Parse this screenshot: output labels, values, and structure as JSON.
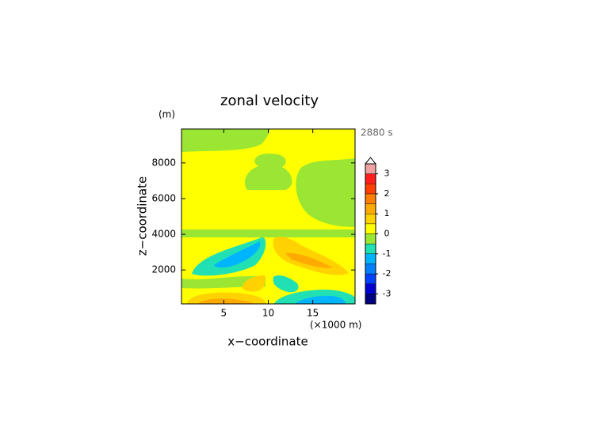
{
  "chart_data": {
    "type": "contour",
    "title": "zonal velocity",
    "x_label": "x−coordinate",
    "y_label": "z−coordinate",
    "y_unit": "(m)",
    "x_unit": "(×1000 m)",
    "time_label": "2880 s",
    "xlim": [
      0.25,
      19.75
    ],
    "ylim": [
      100,
      9900
    ],
    "xticks": [
      5,
      10,
      15
    ],
    "yticks": [
      2000,
      4000,
      6000,
      8000
    ],
    "colorbar": {
      "levels": [
        -3.5,
        -3,
        -2.5,
        -2,
        -1.5,
        -1,
        -0.5,
        0,
        0.5,
        1,
        1.5,
        2,
        2.5,
        3,
        3.5
      ],
      "colors": [
        "#000080",
        "#0000d0",
        "#0040ff",
        "#0080ff",
        "#00b4ff",
        "#20e0b4",
        "#9be632",
        "#ffff00",
        "#ffd200",
        "#ffaa00",
        "#ff8000",
        "#ff4000",
        "#ff1e1e",
        "#f0a0a0"
      ],
      "ticks": [
        -3,
        -2,
        -1,
        0,
        1,
        2,
        3
      ]
    }
  }
}
